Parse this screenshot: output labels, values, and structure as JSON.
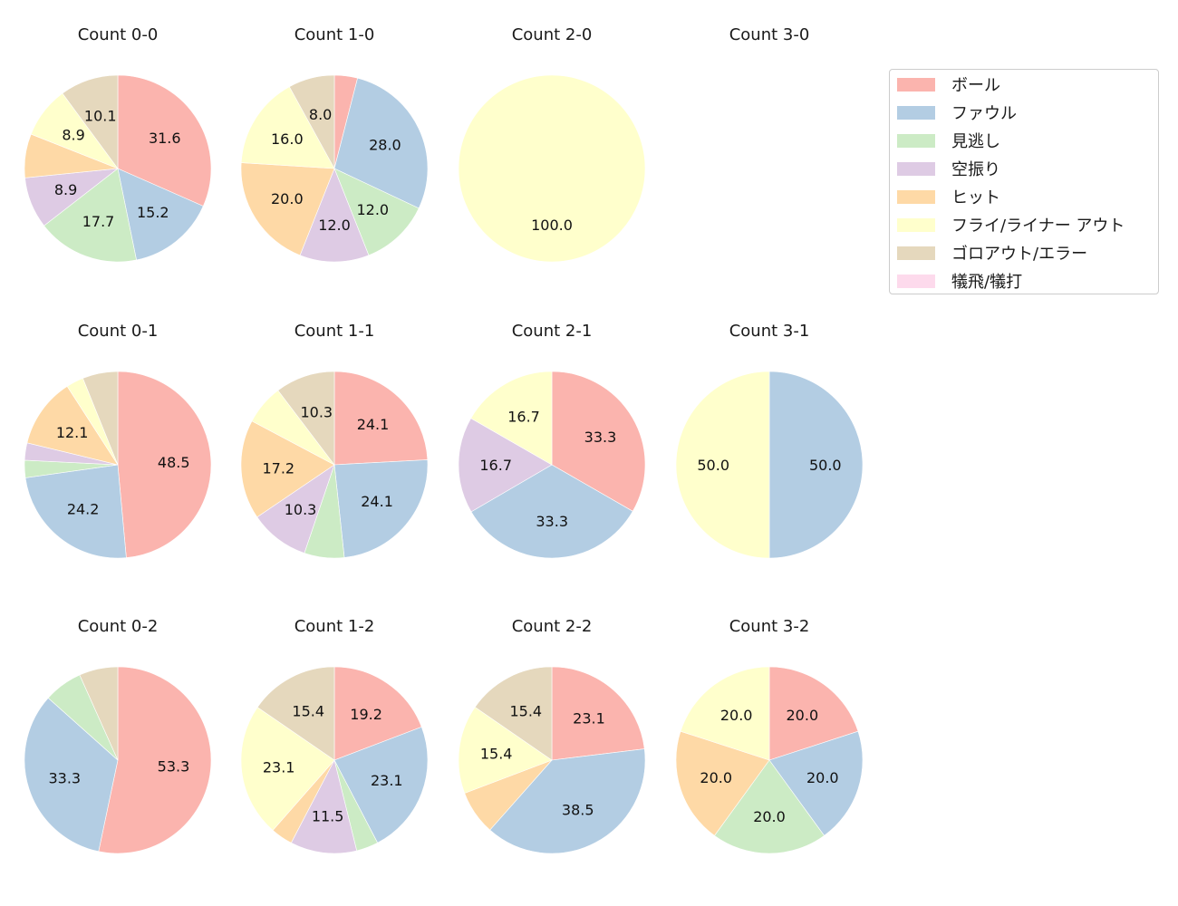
{
  "legend": {
    "items": [
      {
        "label": "ボール",
        "color": "#fbb4ae"
      },
      {
        "label": "ファウル",
        "color": "#b3cde3"
      },
      {
        "label": "見逃し",
        "color": "#ccebc5"
      },
      {
        "label": "空振り",
        "color": "#decbe4"
      },
      {
        "label": "ヒット",
        "color": "#fed9a6"
      },
      {
        "label": "フライ/ライナー アウト",
        "color": "#ffffcc"
      },
      {
        "label": "ゴロアウト/エラー",
        "color": "#e5d8bd"
      },
      {
        "label": "犠飛/犠打",
        "color": "#fddaec"
      }
    ]
  },
  "chart_data": {
    "type": "pie",
    "categories": [
      "ボール",
      "ファウル",
      "見逃し",
      "空振り",
      "ヒット",
      "フライ/ライナー アウト",
      "ゴロアウト/エラー",
      "犠飛/犠打"
    ],
    "colors": [
      "#fbb4ae",
      "#b3cde3",
      "#ccebc5",
      "#decbe4",
      "#fed9a6",
      "#ffffcc",
      "#e5d8bd",
      "#fddaec"
    ],
    "label_threshold_note": "slices below ~8% are drawn without a label",
    "charts": [
      {
        "title": "Count 0-0",
        "values": [
          31.6,
          15.2,
          17.7,
          8.9,
          7.6,
          8.9,
          10.1,
          0
        ]
      },
      {
        "title": "Count 1-0",
        "values": [
          4.0,
          28.0,
          12.0,
          12.0,
          20.0,
          16.0,
          8.0,
          0
        ]
      },
      {
        "title": "Count 2-0",
        "values": [
          0,
          0,
          0,
          0,
          0,
          100.0,
          0,
          0
        ]
      },
      {
        "title": "Count 3-0",
        "values": [
          0,
          0,
          0,
          0,
          0,
          0,
          0,
          0
        ]
      },
      {
        "title": "Count 0-1",
        "values": [
          48.5,
          24.2,
          3.0,
          3.0,
          12.1,
          3.0,
          6.1,
          0
        ]
      },
      {
        "title": "Count 1-1",
        "values": [
          24.1,
          24.1,
          6.9,
          10.3,
          17.2,
          6.9,
          10.3,
          0
        ]
      },
      {
        "title": "Count 2-1",
        "values": [
          33.3,
          33.3,
          0,
          16.7,
          0,
          16.7,
          0,
          0
        ]
      },
      {
        "title": "Count 3-1",
        "values": [
          0,
          50.0,
          0,
          0,
          0,
          50.0,
          0,
          0
        ]
      },
      {
        "title": "Count 0-2",
        "values": [
          53.3,
          33.3,
          6.7,
          0,
          0,
          0,
          6.7,
          0
        ]
      },
      {
        "title": "Count 1-2",
        "values": [
          19.2,
          23.1,
          3.8,
          11.5,
          3.8,
          23.1,
          15.4,
          0
        ]
      },
      {
        "title": "Count 2-2",
        "values": [
          23.1,
          38.5,
          0,
          0,
          7.7,
          15.4,
          15.4,
          0
        ]
      },
      {
        "title": "Count 3-2",
        "values": [
          20.0,
          20.0,
          20.0,
          0,
          20.0,
          20.0,
          0,
          0
        ]
      }
    ]
  }
}
